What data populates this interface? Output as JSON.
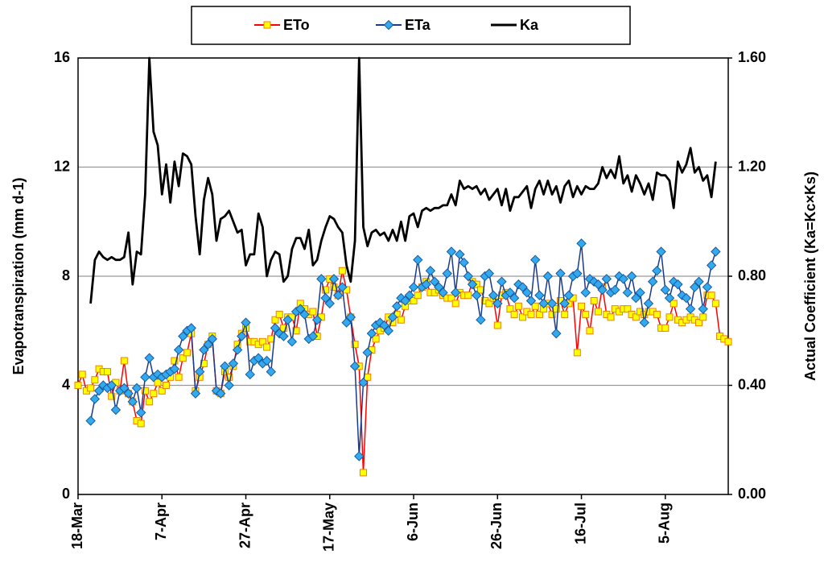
{
  "chart_data": {
    "type": "line",
    "ylabel": "Evapotranspiration (mm d-1)",
    "y2label": "Actual  Coefficient (Ka=Kc×Ks)",
    "categories": [
      "18-Mar",
      null,
      null,
      null,
      null,
      null,
      null,
      null,
      null,
      null,
      null,
      null,
      null,
      null,
      null,
      null,
      null,
      null,
      null,
      null,
      "7-Apr",
      null,
      null,
      null,
      null,
      null,
      null,
      null,
      null,
      null,
      null,
      null,
      null,
      null,
      null,
      null,
      null,
      null,
      null,
      null,
      "27-Apr",
      null,
      null,
      null,
      null,
      null,
      null,
      null,
      null,
      null,
      null,
      null,
      null,
      null,
      null,
      null,
      null,
      null,
      null,
      null,
      "17-May",
      null,
      null,
      null,
      null,
      null,
      null,
      null,
      null,
      null,
      null,
      null,
      null,
      null,
      null,
      null,
      null,
      null,
      null,
      null,
      "6-Jun",
      null,
      null,
      null,
      null,
      null,
      null,
      null,
      null,
      null,
      null,
      null,
      null,
      null,
      null,
      null,
      null,
      null,
      null,
      null,
      "26-Jun",
      null,
      null,
      null,
      null,
      null,
      null,
      null,
      null,
      null,
      null,
      null,
      null,
      null,
      null,
      null,
      null,
      null,
      null,
      null,
      "16-Jul",
      null,
      null,
      null,
      null,
      null,
      null,
      null,
      null,
      null,
      null,
      null,
      null,
      null,
      null,
      null,
      null,
      null,
      null,
      null,
      "5-Aug",
      null,
      null,
      null,
      null,
      null,
      null,
      null,
      null,
      null,
      null,
      null,
      null,
      null,
      null,
      null
    ],
    "series": [
      {
        "name": "ETo",
        "color": "#ff0000",
        "marker": "square",
        "marker_color": "#ffff00",
        "marker_stroke": "#f08000",
        "values": [
          4.0,
          4.4,
          3.8,
          3.9,
          4.2,
          4.6,
          4.5,
          4.5,
          3.6,
          4.1,
          3.8,
          4.9,
          3.7,
          3.4,
          2.7,
          2.6,
          3.8,
          3.4,
          3.7,
          4.1,
          3.8,
          4.0,
          4.3,
          4.9,
          4.3,
          5.0,
          5.2,
          5.9,
          3.8,
          4.3,
          4.8,
          5.5,
          5.8,
          3.8,
          3.7,
          4.5,
          4.3,
          4.7,
          5.5,
          5.9,
          6.1,
          5.6,
          5.6,
          5.5,
          5.6,
          5.4,
          5.7,
          6.4,
          6.6,
          6.1,
          6.5,
          6.5,
          6.0,
          7.0,
          6.8,
          6.6,
          6.7,
          5.8,
          6.5,
          7.5,
          7.9,
          7.6,
          7.3,
          8.2,
          7.5,
          6.5,
          5.5,
          4.7,
          0.8,
          4.3,
          5.3,
          5.7,
          6.0,
          6.1,
          6.5,
          6.3,
          6.6,
          6.4,
          6.9,
          7.1,
          7.1,
          7.3,
          7.6,
          7.8,
          7.4,
          7.4,
          7.5,
          7.3,
          7.2,
          7.2,
          7.0,
          7.4,
          7.3,
          7.3,
          7.8,
          7.7,
          7.5,
          7.1,
          7.0,
          7.2,
          6.2,
          7.3,
          7.4,
          6.8,
          6.6,
          6.9,
          6.5,
          6.7,
          6.6,
          6.9,
          6.6,
          6.8,
          7.0,
          6.6,
          6.8,
          7.1,
          6.6,
          7.0,
          7.2,
          5.2,
          6.9,
          6.6,
          6.0,
          7.1,
          6.7,
          7.6,
          6.6,
          6.5,
          6.8,
          6.7,
          6.8,
          6.8,
          6.6,
          6.5,
          6.7,
          6.6,
          6.7,
          6.7,
          6.6,
          6.1,
          6.1,
          6.5,
          7.0,
          6.4,
          6.3,
          6.4,
          6.5,
          6.4,
          6.3,
          6.5,
          7.3,
          7.3,
          7.0,
          5.8,
          5.7,
          5.6
        ]
      },
      {
        "name": "ETa",
        "color": "#1a3a8a",
        "marker": "diamond",
        "marker_color": "#33aaee",
        "marker_stroke": "#1a5aa0",
        "values": [
          null,
          null,
          null,
          2.7,
          3.5,
          3.8,
          4.0,
          3.9,
          4.0,
          3.1,
          3.8,
          3.9,
          3.7,
          3.4,
          3.9,
          3.0,
          4.3,
          5.0,
          4.3,
          4.4,
          4.3,
          4.4,
          4.5,
          4.6,
          5.3,
          5.8,
          6.0,
          6.1,
          3.7,
          4.5,
          5.3,
          5.5,
          5.7,
          3.8,
          3.7,
          4.7,
          4.0,
          4.8,
          5.3,
          5.8,
          6.3,
          4.4,
          4.9,
          5.0,
          4.8,
          4.9,
          4.5,
          6.1,
          5.9,
          5.8,
          6.4,
          5.6,
          6.7,
          6.8,
          6.6,
          5.7,
          5.8,
          6.4,
          7.9,
          7.2,
          7.0,
          7.9,
          7.3,
          7.6,
          6.3,
          6.5,
          4.7,
          1.4,
          4.1,
          5.2,
          5.9,
          6.2,
          6.3,
          6.2,
          6.0,
          6.5,
          6.9,
          7.2,
          7.1,
          7.3,
          7.6,
          8.6,
          7.6,
          7.7,
          8.2,
          7.8,
          7.6,
          7.4,
          8.1,
          8.9,
          7.4,
          8.8,
          8.5,
          8.0,
          7.7,
          7.3,
          6.4,
          8.0,
          8.1,
          7.3,
          7.0,
          7.8,
          7.3,
          7.4,
          7.2,
          7.7,
          7.6,
          7.4,
          7.1,
          8.6,
          7.3,
          7.0,
          8.0,
          7.0,
          5.9,
          8.1,
          7.0,
          7.3,
          8.0,
          8.1,
          9.2,
          7.4,
          7.9,
          7.8,
          7.7,
          7.5,
          7.9,
          7.4,
          7.5,
          8.0,
          7.9,
          7.4,
          8.0,
          7.2,
          7.4,
          6.3,
          7.0,
          7.8,
          8.2,
          8.9,
          7.5,
          7.2,
          7.8,
          7.7,
          7.3,
          7.2,
          6.8,
          7.6,
          7.8,
          6.8,
          7.6,
          8.4,
          8.9,
          null,
          null,
          null
        ]
      },
      {
        "name": "Ka",
        "color": "#000000",
        "axis": "y2",
        "values": [
          null,
          null,
          null,
          0.7,
          0.86,
          0.89,
          0.87,
          0.86,
          0.87,
          0.86,
          0.86,
          0.87,
          0.96,
          0.77,
          0.89,
          0.88,
          1.1,
          1.6,
          1.33,
          1.28,
          1.1,
          1.21,
          1.07,
          1.22,
          1.13,
          1.25,
          1.24,
          1.21,
          1.02,
          0.88,
          1.08,
          1.16,
          1.1,
          0.93,
          1.01,
          1.02,
          1.04,
          1.0,
          0.96,
          0.97,
          0.84,
          0.88,
          0.88,
          1.03,
          0.98,
          0.8,
          0.86,
          0.89,
          0.88,
          0.78,
          0.8,
          0.9,
          0.94,
          0.94,
          0.9,
          0.97,
          0.84,
          0.86,
          0.93,
          0.98,
          1.02,
          1.01,
          0.98,
          0.96,
          0.84,
          0.78,
          0.93,
          1.6,
          0.98,
          0.91,
          0.96,
          0.97,
          0.95,
          0.96,
          0.93,
          0.97,
          0.93,
          1.0,
          0.93,
          1.02,
          1.03,
          0.98,
          1.04,
          1.05,
          1.04,
          1.05,
          1.05,
          1.06,
          1.06,
          1.1,
          1.06,
          1.15,
          1.12,
          1.13,
          1.12,
          1.13,
          1.1,
          1.12,
          1.08,
          1.1,
          1.12,
          1.06,
          1.12,
          1.04,
          1.09,
          1.09,
          1.11,
          1.13,
          1.05,
          1.12,
          1.15,
          1.1,
          1.15,
          1.1,
          1.13,
          1.07,
          1.13,
          1.15,
          1.09,
          1.13,
          1.1,
          1.13,
          1.12,
          1.12,
          1.14,
          1.2,
          1.16,
          1.19,
          1.16,
          1.24,
          1.14,
          1.17,
          1.11,
          1.17,
          1.14,
          1.1,
          1.14,
          1.08,
          1.18,
          1.17,
          1.17,
          1.15,
          1.05,
          1.22,
          1.18,
          1.21,
          1.27,
          1.18,
          1.2,
          1.15,
          1.17,
          1.09,
          1.22,
          null,
          null,
          null
        ]
      }
    ],
    "ylim": [
      0,
      16
    ],
    "yticks": [
      0,
      4,
      8,
      12,
      16
    ],
    "y2lim": [
      0,
      1.6
    ],
    "y2ticks": [
      {
        "value": 0,
        "label": "0.00"
      },
      {
        "value": 0.4,
        "label": "0.40"
      },
      {
        "value": 0.8,
        "label": "0.80"
      },
      {
        "value": 1.2,
        "label": "1.20"
      },
      {
        "value": 1.6,
        "label": "1.60"
      }
    ],
    "grid": true,
    "legend": "top"
  }
}
